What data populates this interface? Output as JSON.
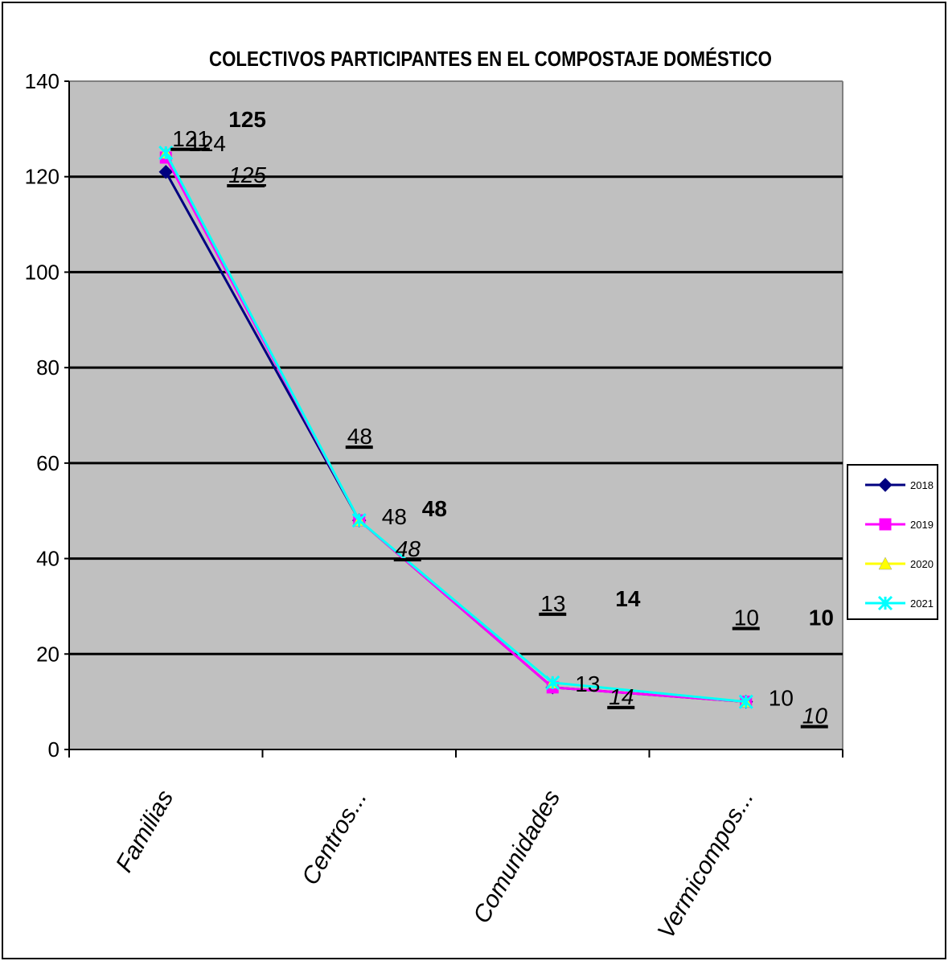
{
  "chart_data": {
    "type": "line",
    "title": "COLECTIVOS PARTICIPANTES EN EL COMPOSTAJE DOMÉSTICO",
    "xlabel": "",
    "ylabel": "",
    "categories": [
      "Familias",
      "Centros...",
      "Comunidades",
      "Vermicompos..."
    ],
    "ylim": [
      0,
      140
    ],
    "yticks": [
      0,
      20,
      40,
      60,
      80,
      100,
      120,
      140
    ],
    "grid": true,
    "legend_position": "right",
    "plot_background": "#c0c0c0",
    "series": [
      {
        "name": "2018",
        "values": [
          121,
          48,
          13,
          10
        ],
        "color": "#000080",
        "marker": "diamond",
        "labels": [
          "121",
          "48",
          "13",
          "10"
        ],
        "label_style": "underline"
      },
      {
        "name": "2019",
        "values": [
          124,
          48,
          13,
          10
        ],
        "color": "#ff00ff",
        "marker": "square",
        "labels": [
          "124",
          "48",
          "13",
          "10"
        ],
        "label_style": "normal"
      },
      {
        "name": "2020",
        "values": [
          125,
          48,
          14,
          10
        ],
        "color": "#ffff00",
        "marker": "triangle",
        "labels": [
          "125",
          "48",
          "14",
          "10"
        ],
        "label_style": "bold"
      },
      {
        "name": "2021",
        "values": [
          125,
          48,
          14,
          10
        ],
        "color": "#00ffff",
        "marker": "star",
        "labels": [
          "125",
          "48",
          "14",
          "10"
        ],
        "label_style": "italic-underline"
      }
    ]
  }
}
